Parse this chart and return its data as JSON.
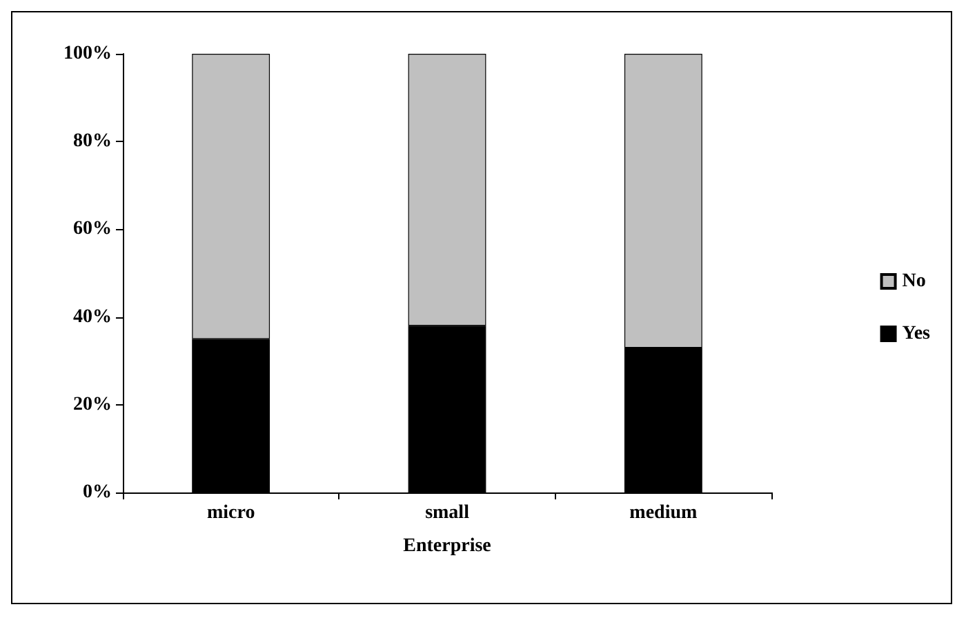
{
  "chart_data": {
    "type": "bar",
    "stacked": true,
    "xlabel": "Enterprise",
    "categories": [
      "micro",
      "small",
      "medium"
    ],
    "series": [
      {
        "name": "Yes",
        "color": "#000000",
        "values": [
          35,
          38,
          33
        ]
      },
      {
        "name": "No",
        "color": "#c0c0c0",
        "values": [
          65,
          62,
          67
        ]
      }
    ],
    "ylim": [
      0,
      100
    ],
    "yticks": [
      {
        "value": 0,
        "label": "0%"
      },
      {
        "value": 20,
        "label": "20%"
      },
      {
        "value": 40,
        "label": "40%"
      },
      {
        "value": 60,
        "label": "60%"
      },
      {
        "value": 80,
        "label": "80%"
      },
      {
        "value": 100,
        "label": "100%"
      }
    ],
    "grid": false,
    "legend": "right"
  }
}
